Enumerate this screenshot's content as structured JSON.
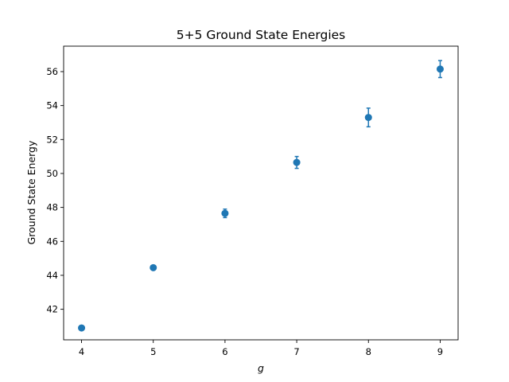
{
  "chart_data": {
    "type": "scatter",
    "title": "5+5 Ground State Energies",
    "xlabel": "g",
    "ylabel": "Ground State Energy",
    "xlim": [
      3.75,
      9.25
    ],
    "ylim": [
      40.2,
      57.5
    ],
    "xticks": [
      4,
      5,
      6,
      7,
      8,
      9
    ],
    "yticks": [
      42,
      44,
      46,
      48,
      50,
      52,
      54,
      56
    ],
    "grid": false,
    "series": [
      {
        "x": [
          4,
          5,
          6,
          7,
          8,
          9
        ],
        "y": [
          40.9,
          44.45,
          47.65,
          50.65,
          53.3,
          56.15
        ],
        "yerr": [
          0.05,
          0.1,
          0.25,
          0.35,
          0.55,
          0.5
        ],
        "color": "#1f77b4",
        "marker": "circle"
      }
    ]
  }
}
